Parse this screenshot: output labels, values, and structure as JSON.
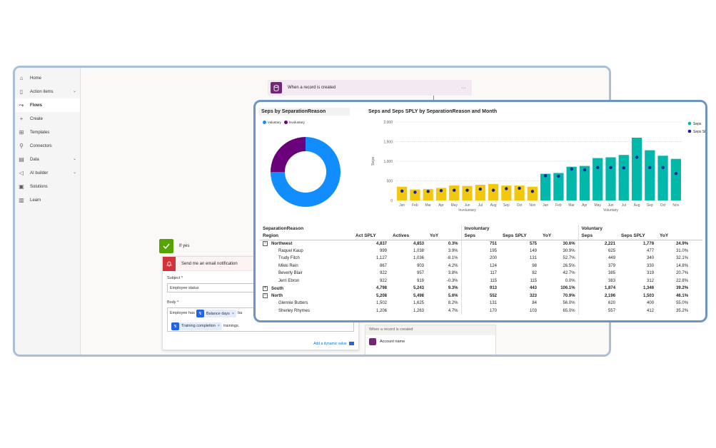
{
  "sidebar": {
    "items": [
      {
        "label": "Home",
        "icon": "home-icon",
        "chevron": false,
        "active": false
      },
      {
        "label": "Action items",
        "icon": "clipboard-icon",
        "chevron": true,
        "active": false
      },
      {
        "label": "Flows",
        "icon": "flow-icon",
        "chevron": false,
        "active": true
      },
      {
        "label": "Create",
        "icon": "plus-icon",
        "chevron": false,
        "active": false
      },
      {
        "label": "Templates",
        "icon": "templates-icon",
        "chevron": false,
        "active": false
      },
      {
        "label": "Connectors",
        "icon": "connector-icon",
        "chevron": false,
        "active": false
      },
      {
        "label": "Data",
        "icon": "database-icon",
        "chevron": true,
        "active": false
      },
      {
        "label": "AI builder",
        "icon": "ai-builder-icon",
        "chevron": true,
        "active": false
      },
      {
        "label": "Solutions",
        "icon": "solutions-icon",
        "chevron": false,
        "active": false
      },
      {
        "label": "Learn",
        "icon": "book-icon",
        "chevron": false,
        "active": false
      }
    ]
  },
  "flow": {
    "trigger_label": "When a record is created",
    "trigger_menu": "···",
    "if_yes_label": "If yes",
    "email_title": "Send me an email notification",
    "subject_label": "Subject *",
    "subject_value": "Employee status",
    "body_label": "Body *",
    "body_text_1": "Employee has",
    "token_1": "Balance days",
    "body_text_2": "ba",
    "token_2": "Training completion",
    "body_text_3": "trainings.",
    "add_dynamic": "Add a dynamic value",
    "sub_trigger_label": "When a record is created",
    "account_name_label": "Account name"
  },
  "colors": {
    "voluntary": "#118dff",
    "involuntary": "#6b007b",
    "bar_involuntary": "#f2c80f",
    "bar_voluntary": "#01b8aa",
    "seps_sply_dot": "#12239e"
  },
  "donut": {
    "title": "Seps by SeparationReason",
    "legend": [
      "Voluntary",
      "Involuntary"
    ]
  },
  "chart_data": [
    {
      "type": "pie",
      "title": "Seps by SeparationReason",
      "categories": [
        "Voluntary",
        "Involuntary"
      ],
      "values": [
        75,
        25
      ]
    },
    {
      "type": "bar",
      "title": "Seps and Seps SPLY by SeparationReason and Month",
      "ylabel": "Seps",
      "ylim": [
        0,
        2000
      ],
      "yticks": [
        "0",
        "500",
        "1,000",
        "1,500",
        "2,000"
      ],
      "groups": [
        "Involuntary",
        "Voluntary"
      ],
      "categories": [
        "Jan",
        "Feb",
        "Mar",
        "Apr",
        "May",
        "Jun",
        "Jul",
        "Aug",
        "Sep",
        "Oct",
        "Nov",
        "Jan",
        "Feb",
        "Mar",
        "Apr",
        "May",
        "Jun",
        "Jul",
        "Aug",
        "Sep",
        "Oct",
        "Nov"
      ],
      "series": [
        {
          "name": "Seps",
          "values": [
            350,
            280,
            290,
            320,
            380,
            370,
            400,
            420,
            380,
            380,
            350,
            680,
            700,
            860,
            880,
            1080,
            1100,
            1160,
            1600,
            1280,
            1140,
            1060
          ]
        },
        {
          "name": "Seps SPLY",
          "values": [
            240,
            210,
            230,
            250,
            260,
            260,
            290,
            260,
            300,
            310,
            230,
            630,
            620,
            800,
            780,
            840,
            840,
            830,
            1100,
            840,
            840,
            690
          ]
        }
      ],
      "legend": [
        "Seps",
        "Seps SPLY"
      ]
    }
  ],
  "table": {
    "group_header": "SeparationReason",
    "region_header": "Region",
    "groups": [
      "",
      "Involuntary",
      "Voluntary"
    ],
    "columns": [
      "Act SPLY",
      "Actives",
      "YoY",
      "Seps",
      "Seps SPLY",
      "YoY",
      "Seps",
      "Seps SPLY",
      "YoY"
    ],
    "rows": [
      {
        "kind": "region",
        "expander": "−",
        "name": "Northwest",
        "cells": [
          "4,837",
          "4,853",
          "0.3%",
          "751",
          "575",
          "30.6%",
          "2,221",
          "1,778",
          "24.9%"
        ]
      },
      {
        "kind": "person",
        "name": "Raquel Kaup",
        "cells": [
          "999",
          "1,038",
          "3.9%",
          "195",
          "149",
          "30.9%",
          "625",
          "477",
          "31.0%"
        ]
      },
      {
        "kind": "person",
        "name": "Trudy Fitch",
        "cells": [
          "1,127",
          "1,036",
          "-8.1%",
          "200",
          "131",
          "52.7%",
          "449",
          "340",
          "32.1%"
        ]
      },
      {
        "kind": "person",
        "name": "Mikki Rein",
        "cells": [
          "867",
          "903",
          "4.2%",
          "124",
          "98",
          "26.5%",
          "379",
          "330",
          "14.8%"
        ]
      },
      {
        "kind": "person",
        "name": "Beverly Blair",
        "cells": [
          "922",
          "957",
          "3.8%",
          "117",
          "82",
          "42.7%",
          "385",
          "319",
          "20.7%"
        ]
      },
      {
        "kind": "person",
        "name": "Jerri Ebron",
        "cells": [
          "922",
          "919",
          "-0.3%",
          "115",
          "115",
          "0.0%",
          "383",
          "312",
          "22.8%"
        ]
      },
      {
        "kind": "region",
        "expander": "+",
        "name": "South",
        "cells": [
          "4,798",
          "5,243",
          "9.3%",
          "913",
          "443",
          "106.1%",
          "1,874",
          "1,346",
          "39.2%"
        ]
      },
      {
        "kind": "region",
        "expander": "−",
        "name": "North",
        "cells": [
          "5,208",
          "5,498",
          "5.6%",
          "552",
          "323",
          "70.9%",
          "2,196",
          "1,503",
          "46.1%"
        ]
      },
      {
        "kind": "person",
        "name": "Glennie Butters",
        "cells": [
          "1,502",
          "1,625",
          "8.2%",
          "131",
          "84",
          "56.0%",
          "620",
          "400",
          "55.0%"
        ]
      },
      {
        "kind": "person",
        "name": "Sherley Rhymes",
        "cells": [
          "1,206",
          "1,263",
          "4.7%",
          "170",
          "103",
          "65.0%",
          "557",
          "412",
          "35.2%"
        ]
      }
    ]
  }
}
